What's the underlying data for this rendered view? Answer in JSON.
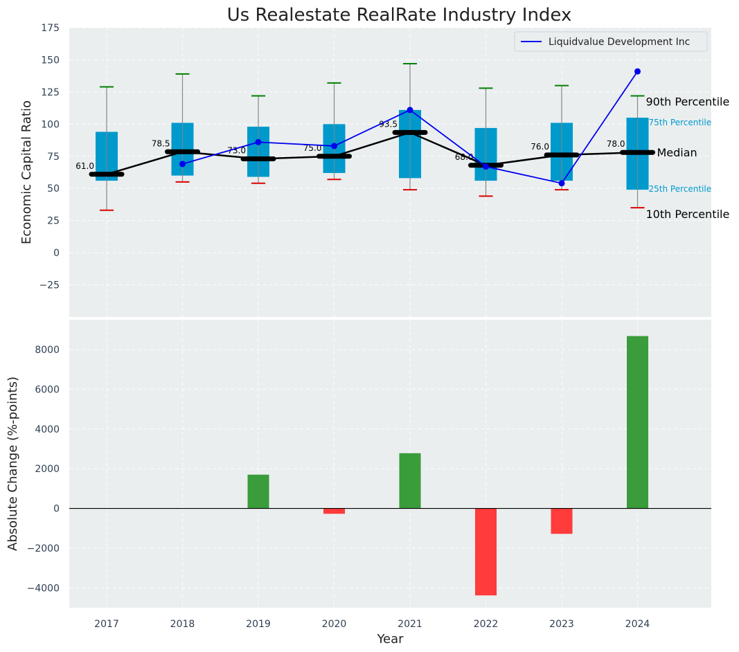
{
  "chart_data": [
    {
      "type": "box",
      "title": "Us Realestate RealRate Industry Index",
      "ylabel": "Economic Capital Ratio",
      "ylim": [
        -50,
        175
      ],
      "yticks": [
        -25,
        0,
        25,
        50,
        75,
        100,
        125,
        150,
        175
      ],
      "ytick_labels": [
        "−25",
        "0",
        "25",
        "50",
        "75",
        "100",
        "125",
        "150",
        "175"
      ],
      "categories": [
        "2017",
        "2018",
        "2019",
        "2020",
        "2021",
        "2022",
        "2023",
        "2024"
      ],
      "boxes": [
        {
          "p10": 33,
          "p25": 56,
          "median": 61.0,
          "p75": 94,
          "p90": 129
        },
        {
          "p10": 55,
          "p25": 60,
          "median": 78.5,
          "p75": 101,
          "p90": 139
        },
        {
          "p10": 54,
          "p25": 59,
          "median": 73.0,
          "p75": 98,
          "p90": 122
        },
        {
          "p10": 57,
          "p25": 62,
          "median": 75.0,
          "p75": 100,
          "p90": 132
        },
        {
          "p10": 49,
          "p25": 58,
          "median": 93.5,
          "p75": 111,
          "p90": 147
        },
        {
          "p10": 44,
          "p25": 56,
          "median": 68.0,
          "p75": 97,
          "p90": 128
        },
        {
          "p10": 49,
          "p25": 56,
          "median": 76.0,
          "p75": 101,
          "p90": 130
        },
        {
          "p10": 35,
          "p25": 49,
          "median": 78.0,
          "p75": 105,
          "p90": 122
        }
      ],
      "median_labels": [
        "61.0",
        "78.5",
        "73.0",
        "75.0",
        "93.5",
        "68.0",
        "76.0",
        "78.0"
      ],
      "series": [
        {
          "name": "Liquidvalue Development Inc",
          "x": [
            "2018",
            "2019",
            "2020",
            "2021",
            "2022",
            "2023",
            "2024"
          ],
          "values": [
            69,
            86,
            83,
            111,
            67,
            54,
            141
          ]
        }
      ],
      "legend": "top-right",
      "annotations": {
        "p90": "90th Percentile",
        "p75": "75th Percentile",
        "median": "Median",
        "p25": "25th Percentile",
        "p10": "10th Percentile"
      },
      "grid": true,
      "colors": {
        "box": "#0099cc",
        "median": "#000000",
        "series": "#0000ee",
        "whisker_top": "#008000",
        "whisker_bottom": "#dd0000",
        "background": "#eaeeef"
      }
    },
    {
      "type": "bar",
      "ylabel": "Absolute Change (%-points)",
      "xlabel": "Year",
      "ylim": [
        -5000,
        9500
      ],
      "yticks": [
        -4000,
        -2000,
        0,
        2000,
        4000,
        6000,
        8000
      ],
      "ytick_labels": [
        "−4000",
        "−2000",
        "0",
        "2000",
        "4000",
        "6000",
        "8000"
      ],
      "categories": [
        "2017",
        "2018",
        "2019",
        "2020",
        "2021",
        "2022",
        "2023",
        "2024"
      ],
      "values": [
        0,
        0,
        1700,
        -270,
        2780,
        -4380,
        -1280,
        8680
      ],
      "grid": true,
      "colors": {
        "positive": "#3a9c3a",
        "negative": "#ff3b3b",
        "background": "#eaeeef"
      }
    }
  ]
}
